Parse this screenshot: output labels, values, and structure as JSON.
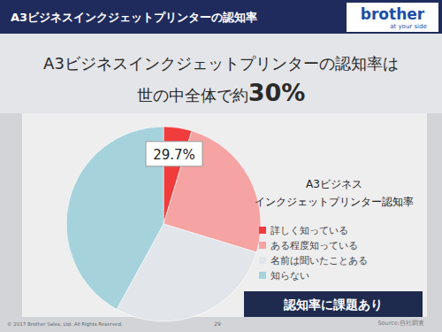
{
  "header": {
    "title": "A3ビジネスインクジェットプリンターの認知率",
    "logo": "brother",
    "tagline": "at your side"
  },
  "headline": [
    "A3ビジネスインクジェットプリンターの認知率は",
    "世の中全体で約",
    "30%"
  ],
  "chart_data": {
    "type": "pie",
    "title": [
      "A3ビジネス",
      "インクジェットプリンター認知率"
    ],
    "categories": [
      "詳しく知っている",
      "ある程度知っている",
      "名前は聞いたことある",
      "知らない"
    ],
    "values": [
      4.7,
      25,
      28.3,
      42
    ],
    "colors": [
      "#f03c3c",
      "#f5a3a3",
      "#e2e5ea",
      "#a6d2dc"
    ],
    "annotations": [
      "29.7%"
    ],
    "legend": "right"
  },
  "callout": "認知率に課題あり",
  "source": "Source:自社調査",
  "footer": {
    "copyright": "© 2017 Brother Sales, Ltd. All Rights Reserved.",
    "page": "29"
  }
}
